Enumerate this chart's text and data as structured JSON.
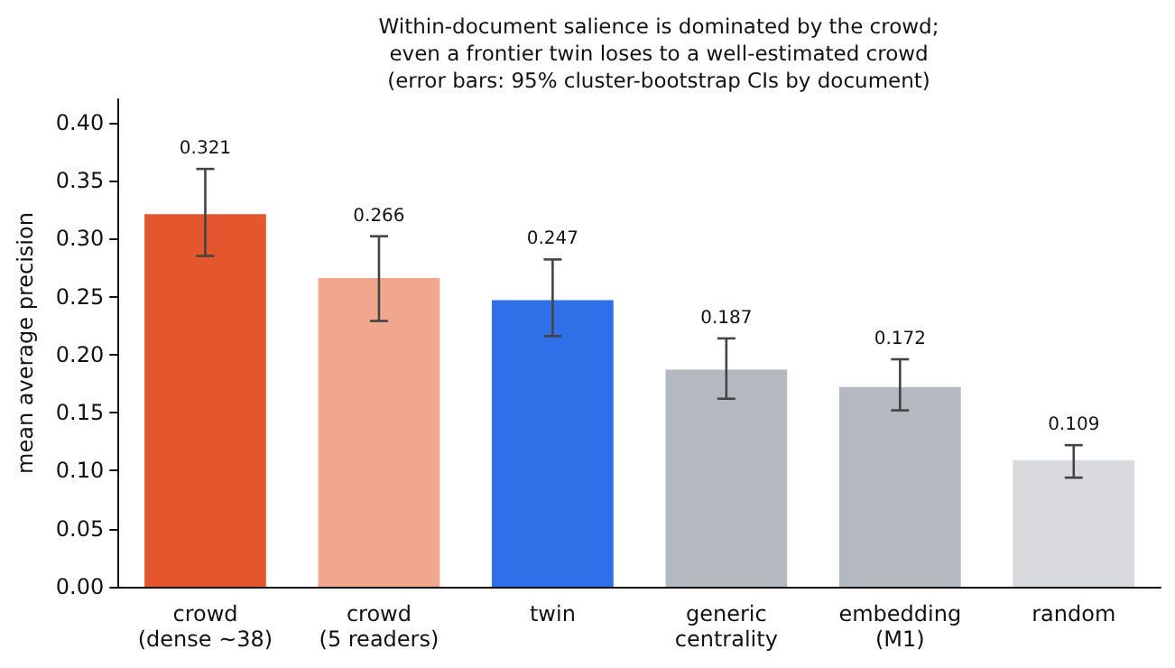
{
  "chart_data": {
    "type": "bar",
    "title": "Within-document salience is dominated by the crowd;\neven a frontier twin loses to a well-estimated crowd\n(error bars: 95% cluster-bootstrap CIs by document)",
    "ylabel": "mean average precision",
    "categories": [
      "crowd\n(dense ~38)",
      "crowd\n(5 readers)",
      "twin",
      "generic\ncentrality",
      "embedding\n(M1)",
      "random"
    ],
    "values": [
      0.321,
      0.266,
      0.247,
      0.187,
      0.172,
      0.109
    ],
    "colors": [
      "#e4572e",
      "#f0a78e",
      "#2f6fe8",
      "#b4b9c0",
      "#b4b9c0",
      "#d8dadd"
    ],
    "errors": [
      [
        0.285,
        0.36
      ],
      [
        0.229,
        0.302
      ],
      [
        0.216,
        0.282
      ],
      [
        0.162,
        0.214
      ],
      [
        0.152,
        0.196
      ],
      [
        0.094,
        0.122
      ]
    ],
    "data_labels": true,
    "ylim": [
      0,
      0.42
    ],
    "yticks": [
      {
        "value": 0,
        "label": "0.00"
      },
      {
        "value": 0.05,
        "label": "0.05"
      },
      {
        "value": 0.1,
        "label": "0.10"
      },
      {
        "value": 0.15,
        "label": "0.15"
      },
      {
        "value": 0.2,
        "label": "0.20"
      },
      {
        "value": 0.25,
        "label": "0.25"
      },
      {
        "value": 0.3,
        "label": "0.30"
      },
      {
        "value": 0.35,
        "label": "0.35"
      },
      {
        "value": 0.4,
        "label": "0.40"
      }
    ],
    "grid": false
  }
}
